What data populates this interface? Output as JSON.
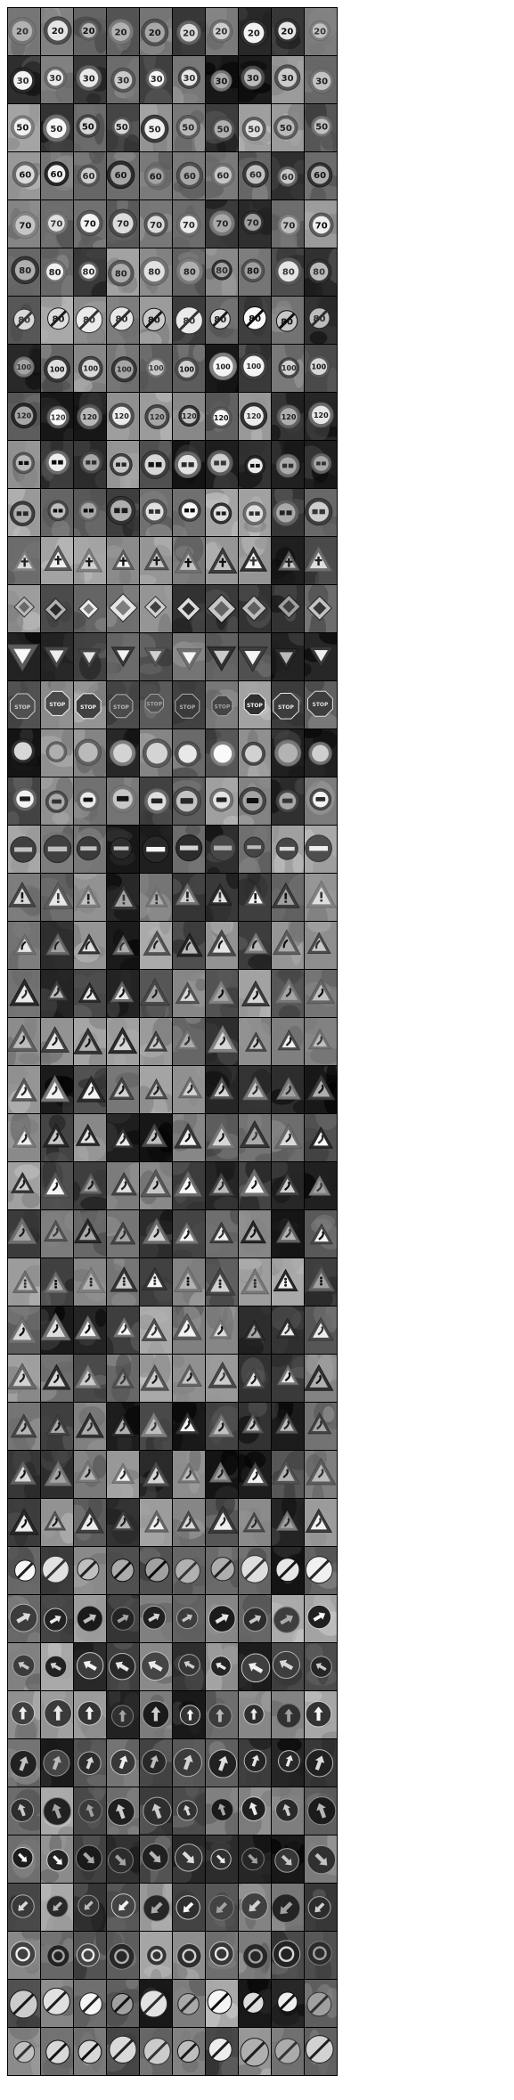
{
  "figure": {
    "grid": {
      "rows": 43,
      "columns": 10
    },
    "rows": [
      {
        "sign": "speed-limit-20",
        "text": "20"
      },
      {
        "sign": "speed-limit-30",
        "text": "30"
      },
      {
        "sign": "speed-limit-50",
        "text": "50"
      },
      {
        "sign": "speed-limit-60",
        "text": "60"
      },
      {
        "sign": "speed-limit-70",
        "text": "70"
      },
      {
        "sign": "speed-limit-80",
        "text": "80"
      },
      {
        "sign": "end-speed-limit-80",
        "text": "80"
      },
      {
        "sign": "speed-limit-100",
        "text": "100"
      },
      {
        "sign": "speed-limit-120",
        "text": "120"
      },
      {
        "sign": "no-passing",
        "text": ""
      },
      {
        "sign": "no-passing-trucks",
        "text": ""
      },
      {
        "sign": "right-of-way-next-intersection",
        "text": ""
      },
      {
        "sign": "priority-road",
        "text": ""
      },
      {
        "sign": "yield",
        "text": ""
      },
      {
        "sign": "stop",
        "text": "STOP"
      },
      {
        "sign": "no-vehicles",
        "text": ""
      },
      {
        "sign": "no-trucks",
        "text": ""
      },
      {
        "sign": "no-entry",
        "text": ""
      },
      {
        "sign": "general-caution",
        "text": "!"
      },
      {
        "sign": "dangerous-curve-left",
        "text": ""
      },
      {
        "sign": "dangerous-curve-right",
        "text": ""
      },
      {
        "sign": "double-curve",
        "text": ""
      },
      {
        "sign": "bumpy-road",
        "text": ""
      },
      {
        "sign": "slippery-road",
        "text": ""
      },
      {
        "sign": "road-narrows-right",
        "text": ""
      },
      {
        "sign": "road-work",
        "text": ""
      },
      {
        "sign": "traffic-signals",
        "text": ""
      },
      {
        "sign": "pedestrians",
        "text": ""
      },
      {
        "sign": "children-crossing",
        "text": ""
      },
      {
        "sign": "bicycles-crossing",
        "text": ""
      },
      {
        "sign": "ice-snow",
        "text": ""
      },
      {
        "sign": "wild-animals",
        "text": ""
      },
      {
        "sign": "end-all-limits",
        "text": ""
      },
      {
        "sign": "turn-right-ahead",
        "text": ""
      },
      {
        "sign": "turn-left-ahead",
        "text": ""
      },
      {
        "sign": "ahead-only",
        "text": ""
      },
      {
        "sign": "straight-or-right",
        "text": ""
      },
      {
        "sign": "straight-or-left",
        "text": ""
      },
      {
        "sign": "keep-right",
        "text": ""
      },
      {
        "sign": "keep-left",
        "text": ""
      },
      {
        "sign": "roundabout",
        "text": ""
      },
      {
        "sign": "end-no-passing",
        "text": ""
      },
      {
        "sign": "end-no-passing-trucks",
        "text": ""
      }
    ]
  }
}
